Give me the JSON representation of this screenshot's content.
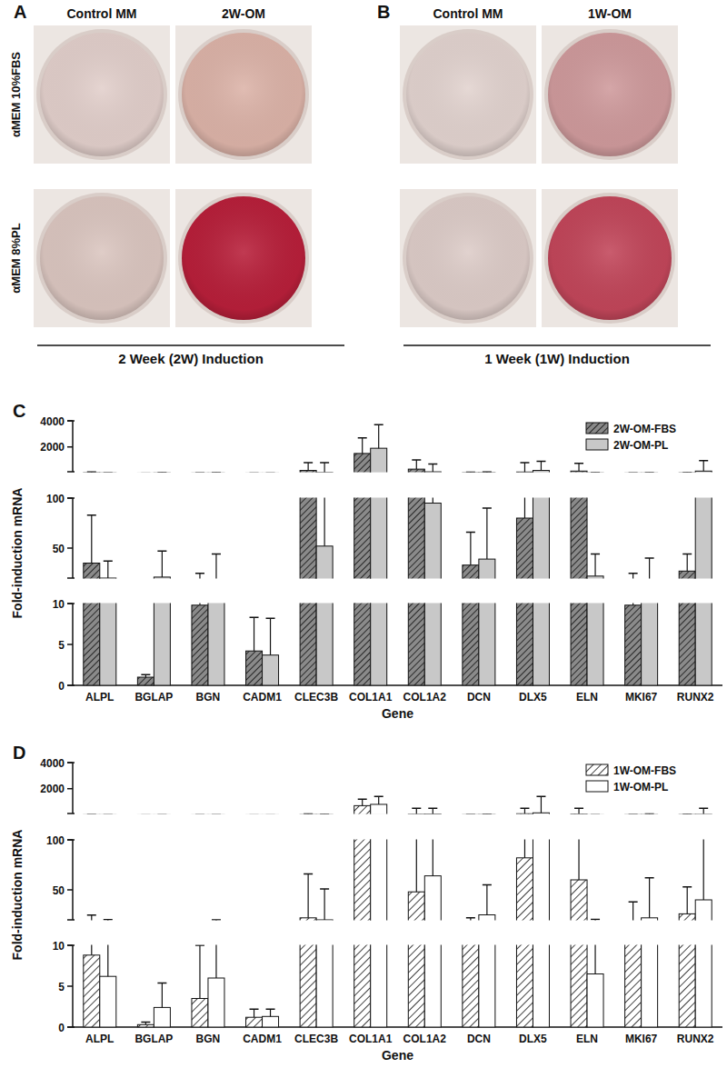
{
  "panels": [
    {
      "panel_label": "A",
      "columns": [
        "Control MM",
        "2W-OM"
      ],
      "rows": [
        "αMEM 10%FBS",
        "αMEM 8%PL"
      ],
      "caption": "2 Week (2W) Induction",
      "well_colors": [
        [
          "#e2cfcb",
          "#dcb3a8"
        ],
        [
          "#dbc6c0",
          "#b81f3a"
        ]
      ]
    },
    {
      "panel_label": "B",
      "columns": [
        "Control MM",
        "1W-OM"
      ],
      "caption": "1 Week (1W) Induction",
      "well_colors": [
        [
          "#e2d3cf",
          "#cf9a9c"
        ],
        [
          "#ddccc8",
          "#c2465a"
        ]
      ]
    }
  ],
  "chart_data": [
    {
      "type": "bar",
      "panel_label": "C",
      "x_label": "Gene",
      "y_label": "Fold-induction mRNA",
      "categories": [
        "ALPL",
        "BGLAP",
        "BGN",
        "CADM1",
        "CLEC3B",
        "COL1A1",
        "COL1A2",
        "DCN",
        "DLX5",
        "ELN",
        "MKI67",
        "RUNX2"
      ],
      "ylim": [
        0,
        4000
      ],
      "yticks": [
        0,
        5,
        10,
        50,
        100,
        2000,
        4000
      ],
      "y_segments": [
        [
          0,
          10
        ],
        [
          20,
          100
        ],
        [
          100,
          4000
        ]
      ],
      "legend": "top-right",
      "series": [
        {
          "name": "2W-OM-FBS",
          "color": "#8a8a8a",
          "values": [
            35,
            1,
            9.8,
            4.2,
            200,
            1500,
            300,
            33,
            80,
            150,
            9.8,
            27
          ],
          "errors": [
            48,
            0.3,
            15,
            4.1,
            600,
            1200,
            700,
            33,
            720,
            600,
            15,
            17
          ]
        },
        {
          "name": "2W-OM-PL",
          "color": "#c8c8c8",
          "values": [
            20,
            21,
            15,
            3.7,
            52,
            1900,
            95,
            39,
            200,
            22,
            15,
            150
          ],
          "errors": [
            17,
            26,
            29,
            4.5,
            750,
            1800,
            600,
            51,
            700,
            22,
            25,
            800
          ]
        }
      ]
    },
    {
      "type": "bar",
      "panel_label": "D",
      "x_label": "Gene",
      "y_label": "Fold-induction mRNA",
      "categories": [
        "ALPL",
        "BGLAP",
        "BGN",
        "CADM1",
        "CLEC3B",
        "COL1A1",
        "COL1A2",
        "DCN",
        "DLX5",
        "ELN",
        "MKI67",
        "RUNX2"
      ],
      "ylim": [
        0,
        4000
      ],
      "yticks": [
        0,
        5,
        10,
        50,
        100,
        2000,
        4000
      ],
      "y_segments": [
        [
          0,
          10
        ],
        [
          20,
          100
        ],
        [
          100,
          4000
        ]
      ],
      "legend": "top-right",
      "series": [
        {
          "name": "1W-OM-FBS",
          "color": "#ffffff",
          "values": [
            8.8,
            0.3,
            3.5,
            1.2,
            22,
            700,
            48,
            15,
            82,
            60,
            16,
            26
          ],
          "errors": [
            16,
            0.3,
            6.5,
            1,
            44,
            500,
            450,
            7,
            420,
            440,
            22,
            27
          ]
        },
        {
          "name": "1W-OM-PL",
          "color": "#ffffff",
          "values": [
            6.2,
            2.4,
            6,
            1.3,
            20,
            800,
            64,
            25,
            150,
            6.5,
            22,
            40
          ],
          "errors": [
            14,
            3,
            14,
            0.9,
            31,
            600,
            440,
            30,
            1250,
            14,
            40,
            460
          ]
        }
      ]
    }
  ]
}
